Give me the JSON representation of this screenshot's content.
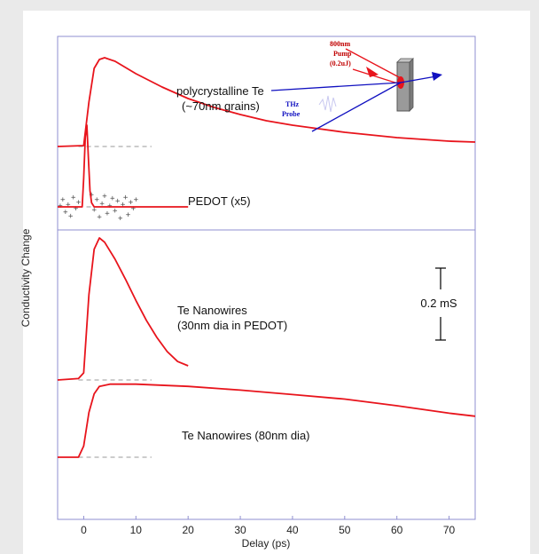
{
  "chart_data": {
    "type": "line",
    "title": "",
    "xlabel": "Delay (ps)",
    "ylabel": "Conductivity Change",
    "xlim": [
      -5,
      75
    ],
    "x_ticks": [
      0,
      10,
      20,
      30,
      40,
      50,
      60,
      70
    ],
    "scale_bar_label": "0.2 mS",
    "annotations": {
      "poly_line1": "polycrystalline  Te",
      "poly_line2": "(~70nm grains)",
      "pedot": "PEDOT (x5)",
      "nw30_line1": "Te Nanowires",
      "nw30_line2": "(30nm dia in PEDOT)",
      "nw80": "Te Nanowires (80nm dia)"
    },
    "inset": {
      "pump_line1": "800nm",
      "pump_line2": "Pump",
      "pump_line3": "(0.2uJ)",
      "probe_line1": "THz",
      "probe_line2": "Probe"
    },
    "series": [
      {
        "values": [
          [
            -5,
            0
          ],
          [
            0,
            0.01
          ],
          [
            1,
            0.5
          ],
          [
            2,
            0.88
          ],
          [
            3,
            0.98
          ],
          [
            4,
            1.0
          ],
          [
            6,
            0.96
          ],
          [
            10,
            0.82
          ],
          [
            15,
            0.67
          ],
          [
            20,
            0.54
          ],
          [
            25,
            0.44
          ],
          [
            30,
            0.36
          ],
          [
            35,
            0.29
          ],
          [
            40,
            0.24
          ],
          [
            45,
            0.2
          ],
          [
            50,
            0.16
          ],
          [
            55,
            0.13
          ],
          [
            60,
            0.1
          ],
          [
            65,
            0.08
          ],
          [
            70,
            0.06
          ],
          [
            75,
            0.05
          ]
        ]
      },
      {
        "values": [
          [
            -5,
            0
          ],
          [
            -0.3,
            0
          ],
          [
            0,
            0.35
          ],
          [
            0.3,
            0.85
          ],
          [
            0.6,
            1.0
          ],
          [
            0.9,
            0.6
          ],
          [
            1.2,
            0.2
          ],
          [
            1.5,
            0.05
          ],
          [
            2,
            0
          ],
          [
            20,
            0
          ]
        ]
      },
      {
        "values": [
          [
            -5,
            0
          ],
          [
            -1,
            0.01
          ],
          [
            0,
            0.05
          ],
          [
            1,
            0.6
          ],
          [
            2,
            0.92
          ],
          [
            3,
            1.0
          ],
          [
            4,
            0.97
          ],
          [
            6,
            0.85
          ],
          [
            8,
            0.71
          ],
          [
            10,
            0.56
          ],
          [
            12,
            0.42
          ],
          [
            14,
            0.3
          ],
          [
            16,
            0.2
          ],
          [
            18,
            0.13
          ],
          [
            20,
            0.1
          ]
        ]
      },
      {
        "values": [
          [
            -5,
            0
          ],
          [
            -1,
            0
          ],
          [
            0,
            0.15
          ],
          [
            1,
            0.6
          ],
          [
            2,
            0.85
          ],
          [
            3,
            0.95
          ],
          [
            5,
            0.98
          ],
          [
            10,
            0.98
          ],
          [
            20,
            0.95
          ],
          [
            30,
            0.9
          ],
          [
            40,
            0.84
          ],
          [
            50,
            0.78
          ],
          [
            60,
            0.69
          ],
          [
            70,
            0.59
          ],
          [
            75,
            0.55
          ]
        ]
      }
    ],
    "noise_points": [
      [
        -4.5,
        0.05
      ],
      [
        -4,
        0.3
      ],
      [
        -3.5,
        -0.2
      ],
      [
        -3,
        0.1
      ],
      [
        -2.5,
        -0.35
      ],
      [
        -2,
        0.4
      ],
      [
        -1.5,
        -0.05
      ],
      [
        -1,
        0.2
      ],
      [
        1.5,
        0.5
      ],
      [
        2,
        -0.1
      ],
      [
        2.5,
        0.3
      ],
      [
        3,
        -0.4
      ],
      [
        3.5,
        0.15
      ],
      [
        4,
        0.45
      ],
      [
        4.5,
        -0.25
      ],
      [
        5,
        0.05
      ],
      [
        5.5,
        0.35
      ],
      [
        6,
        -0.15
      ],
      [
        6.5,
        0.25
      ],
      [
        7,
        -0.45
      ],
      [
        7.5,
        0.1
      ],
      [
        8,
        0.4
      ],
      [
        8.5,
        -0.3
      ],
      [
        9,
        0.2
      ],
      [
        9.5,
        -0.05
      ],
      [
        10,
        0.3
      ]
    ],
    "colors": {
      "data": "#e8141c",
      "axes": "#8f8fd0",
      "baseline": "#9a9a9a",
      "noise": "#555555"
    }
  }
}
